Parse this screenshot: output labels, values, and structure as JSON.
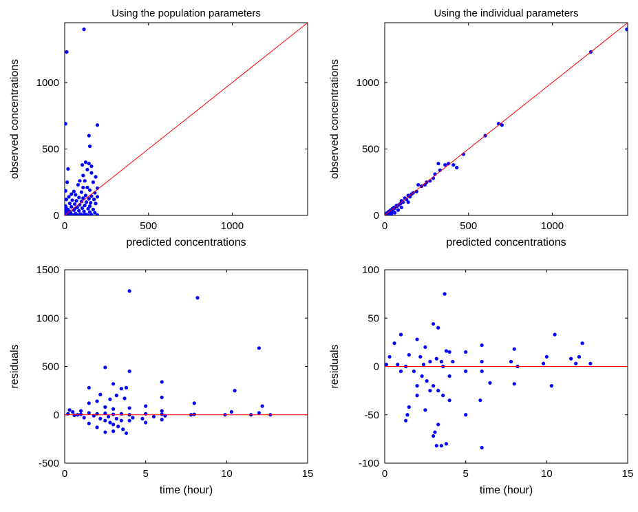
{
  "chart_data": [
    {
      "type": "scatter",
      "title": "Using the population parameters",
      "xlabel": "predicted concentrations",
      "ylabel": "observed concentrations",
      "xlim": [
        0,
        1450
      ],
      "ylim": [
        0,
        1450
      ],
      "xticks": [
        0,
        500,
        1000
      ],
      "yticks": [
        0,
        500,
        1000
      ],
      "point_color": "#0000ff",
      "line_color": "#ff0000",
      "reference_line": {
        "type": "identity",
        "from": [
          0,
          0
        ],
        "to": [
          1450,
          1450
        ]
      },
      "points": [
        [
          12,
          1230
        ],
        [
          115,
          1400
        ],
        [
          5,
          690
        ],
        [
          195,
          680
        ],
        [
          145,
          600
        ],
        [
          150,
          520
        ],
        [
          125,
          400
        ],
        [
          145,
          390
        ],
        [
          105,
          380
        ],
        [
          160,
          370
        ],
        [
          135,
          345
        ],
        [
          20,
          350
        ],
        [
          160,
          320
        ],
        [
          110,
          300
        ],
        [
          185,
          290
        ],
        [
          90,
          260
        ],
        [
          120,
          260
        ],
        [
          170,
          250
        ],
        [
          15,
          250
        ],
        [
          80,
          230
        ],
        [
          110,
          210
        ],
        [
          135,
          210
        ],
        [
          195,
          205
        ],
        [
          150,
          190
        ],
        [
          5,
          185
        ],
        [
          55,
          180
        ],
        [
          100,
          175
        ],
        [
          180,
          170
        ],
        [
          40,
          160
        ],
        [
          65,
          155
        ],
        [
          125,
          150
        ],
        [
          160,
          145
        ],
        [
          195,
          140
        ],
        [
          25,
          140
        ],
        [
          85,
          135
        ],
        [
          110,
          130
        ],
        [
          145,
          125
        ],
        [
          175,
          120
        ],
        [
          10,
          120
        ],
        [
          45,
          115
        ],
        [
          70,
          110
        ],
        [
          100,
          105
        ],
        [
          130,
          100
        ],
        [
          155,
          95
        ],
        [
          185,
          90
        ],
        [
          30,
          90
        ],
        [
          60,
          85
        ],
        [
          90,
          80
        ],
        [
          120,
          75
        ],
        [
          150,
          70
        ],
        [
          5,
          70
        ],
        [
          40,
          65
        ],
        [
          75,
          60
        ],
        [
          105,
          55
        ],
        [
          140,
          50
        ],
        [
          170,
          45
        ],
        [
          20,
          45
        ],
        [
          55,
          40
        ],
        [
          85,
          35
        ],
        [
          115,
          30
        ],
        [
          150,
          25
        ],
        [
          180,
          20
        ],
        [
          10,
          25
        ],
        [
          35,
          20
        ],
        [
          65,
          15
        ],
        [
          95,
          10
        ],
        [
          125,
          8
        ],
        [
          160,
          5
        ],
        [
          195,
          3
        ],
        [
          5,
          10
        ],
        [
          25,
          5
        ],
        [
          50,
          3
        ],
        [
          80,
          2
        ],
        [
          110,
          2
        ],
        [
          140,
          1
        ],
        [
          15,
          2
        ],
        [
          45,
          1
        ],
        [
          75,
          1
        ],
        [
          3,
          40
        ],
        [
          8,
          60
        ],
        [
          2,
          15
        ],
        [
          12,
          8
        ],
        [
          30,
          30
        ],
        [
          60,
          50
        ]
      ]
    },
    {
      "type": "scatter",
      "title": "Using the individual parameters",
      "xlabel": "predicted concentrations",
      "ylabel": "observed concentrations",
      "xlim": [
        0,
        1450
      ],
      "ylim": [
        0,
        1450
      ],
      "xticks": [
        0,
        500,
        1000
      ],
      "yticks": [
        0,
        500,
        1000
      ],
      "point_color": "#0000ff",
      "line_color": "#ff0000",
      "reference_line": {
        "type": "identity",
        "from": [
          0,
          0
        ],
        "to": [
          1450,
          1450
        ]
      },
      "points": [
        [
          1445,
          1400
        ],
        [
          1230,
          1230
        ],
        [
          700,
          680
        ],
        [
          680,
          690
        ],
        [
          600,
          600
        ],
        [
          470,
          460
        ],
        [
          430,
          360
        ],
        [
          410,
          380
        ],
        [
          380,
          390
        ],
        [
          360,
          380
        ],
        [
          320,
          390
        ],
        [
          330,
          340
        ],
        [
          300,
          310
        ],
        [
          290,
          280
        ],
        [
          270,
          260
        ],
        [
          250,
          250
        ],
        [
          240,
          230
        ],
        [
          220,
          220
        ],
        [
          200,
          230
        ],
        [
          190,
          180
        ],
        [
          170,
          170
        ],
        [
          160,
          160
        ],
        [
          150,
          140
        ],
        [
          140,
          150
        ],
        [
          130,
          120
        ],
        [
          120,
          130
        ],
        [
          110,
          100
        ],
        [
          100,
          110
        ],
        [
          95,
          90
        ],
        [
          85,
          80
        ],
        [
          75,
          70
        ],
        [
          70,
          75
        ],
        [
          60,
          55
        ],
        [
          55,
          60
        ],
        [
          50,
          45
        ],
        [
          45,
          50
        ],
        [
          40,
          35
        ],
        [
          35,
          40
        ],
        [
          30,
          25
        ],
        [
          25,
          30
        ],
        [
          20,
          15
        ],
        [
          15,
          20
        ],
        [
          10,
          8
        ],
        [
          8,
          12
        ],
        [
          5,
          4
        ],
        [
          3,
          6
        ],
        [
          2,
          1
        ],
        [
          60,
          20
        ],
        [
          80,
          40
        ],
        [
          100,
          60
        ],
        [
          140,
          100
        ],
        [
          40,
          10
        ],
        [
          25,
          5
        ],
        [
          50,
          30
        ]
      ]
    },
    {
      "type": "scatter",
      "title": "",
      "xlabel": "time (hour)",
      "ylabel": "residuals",
      "xlim": [
        0,
        15
      ],
      "ylim": [
        -500,
        1500
      ],
      "xticks": [
        0,
        5,
        10,
        15
      ],
      "yticks": [
        -500,
        0,
        500,
        1000,
        1500
      ],
      "point_color": "#0000ff",
      "line_color": "#ff0000",
      "reference_line": {
        "type": "horizontal",
        "y": 0
      },
      "points": [
        [
          4.0,
          1280
        ],
        [
          8.2,
          1210
        ],
        [
          12.0,
          690
        ],
        [
          2.5,
          490
        ],
        [
          4.0,
          450
        ],
        [
          6.0,
          340
        ],
        [
          3.0,
          320
        ],
        [
          3.5,
          270
        ],
        [
          3.8,
          280
        ],
        [
          1.5,
          280
        ],
        [
          10.5,
          250
        ],
        [
          2.2,
          210
        ],
        [
          3.2,
          200
        ],
        [
          6.0,
          180
        ],
        [
          3.7,
          170
        ],
        [
          2.8,
          160
        ],
        [
          2.0,
          140
        ],
        [
          1.5,
          120
        ],
        [
          8.0,
          120
        ],
        [
          12.2,
          90
        ],
        [
          5.0,
          90
        ],
        [
          2.5,
          80
        ],
        [
          4.0,
          70
        ],
        [
          3.0,
          60
        ],
        [
          0.3,
          50
        ],
        [
          1.0,
          40
        ],
        [
          6.0,
          40
        ],
        [
          10.3,
          30
        ],
        [
          12.0,
          20
        ],
        [
          0.5,
          30
        ],
        [
          1.5,
          20
        ],
        [
          2.0,
          10
        ],
        [
          2.5,
          15
        ],
        [
          3.0,
          5
        ],
        [
          3.5,
          10
        ],
        [
          4.0,
          0
        ],
        [
          5.0,
          10
        ],
        [
          6.0,
          5
        ],
        [
          7.8,
          0
        ],
        [
          8.0,
          5
        ],
        [
          9.9,
          0
        ],
        [
          11.5,
          0
        ],
        [
          12.7,
          0
        ],
        [
          0.8,
          0
        ],
        [
          1.8,
          -10
        ],
        [
          2.2,
          -40
        ],
        [
          2.5,
          -60
        ],
        [
          2.8,
          -80
        ],
        [
          3.0,
          -100
        ],
        [
          3.3,
          -120
        ],
        [
          3.6,
          -150
        ],
        [
          2.5,
          -180
        ],
        [
          3.0,
          -170
        ],
        [
          2.0,
          -130
        ],
        [
          1.5,
          -90
        ],
        [
          3.8,
          -190
        ],
        [
          4.0,
          -60
        ],
        [
          5.0,
          -80
        ],
        [
          6.0,
          -50
        ],
        [
          1.2,
          -30
        ],
        [
          2.7,
          -20
        ],
        [
          3.2,
          -40
        ],
        [
          3.5,
          -60
        ],
        [
          4.2,
          -30
        ],
        [
          5.5,
          -20
        ],
        [
          0.2,
          10
        ],
        [
          0.6,
          -5
        ],
        [
          1.0,
          5
        ],
        [
          4.8,
          -40
        ],
        [
          6.2,
          -10
        ]
      ]
    },
    {
      "type": "scatter",
      "title": "",
      "xlabel": "time (hour)",
      "ylabel": "residuals",
      "xlim": [
        0,
        15
      ],
      "ylim": [
        -100,
        100
      ],
      "xticks": [
        0,
        5,
        10,
        15
      ],
      "yticks": [
        -100,
        -50,
        0,
        50,
        100
      ],
      "point_color": "#0000ff",
      "line_color": "#ff0000",
      "reference_line": {
        "type": "horizontal",
        "y": 0
      },
      "points": [
        [
          3.7,
          75
        ],
        [
          3.0,
          44
        ],
        [
          10.5,
          33
        ],
        [
          1.0,
          33
        ],
        [
          3.3,
          40
        ],
        [
          0.6,
          24
        ],
        [
          12.2,
          24
        ],
        [
          2.0,
          28
        ],
        [
          2.5,
          20
        ],
        [
          6.0,
          22
        ],
        [
          3.8,
          16
        ],
        [
          4.0,
          15
        ],
        [
          8.0,
          18
        ],
        [
          10.0,
          10
        ],
        [
          11.5,
          8
        ],
        [
          12.0,
          10
        ],
        [
          0.3,
          10
        ],
        [
          1.5,
          12
        ],
        [
          2.2,
          10
        ],
        [
          2.8,
          5
        ],
        [
          3.2,
          8
        ],
        [
          3.5,
          5
        ],
        [
          4.2,
          5
        ],
        [
          5.0,
          15
        ],
        [
          6.0,
          5
        ],
        [
          7.8,
          5
        ],
        [
          8.2,
          0
        ],
        [
          9.8,
          3
        ],
        [
          11.8,
          3
        ],
        [
          12.7,
          3
        ],
        [
          0.1,
          2
        ],
        [
          0.8,
          2
        ],
        [
          1.3,
          0
        ],
        [
          1.8,
          -5
        ],
        [
          2.3,
          -10
        ],
        [
          2.6,
          -15
        ],
        [
          3.0,
          -20
        ],
        [
          3.3,
          -25
        ],
        [
          3.6,
          -30
        ],
        [
          4.0,
          -35
        ],
        [
          1.5,
          -42
        ],
        [
          1.4,
          -50
        ],
        [
          1.3,
          -56
        ],
        [
          2.0,
          -30
        ],
        [
          2.5,
          -45
        ],
        [
          3.0,
          -72
        ],
        [
          3.3,
          -60
        ],
        [
          3.5,
          -82
        ],
        [
          3.2,
          -82
        ],
        [
          3.8,
          -80
        ],
        [
          3.1,
          -68
        ],
        [
          5.0,
          -50
        ],
        [
          6.0,
          -84
        ],
        [
          5.9,
          -35
        ],
        [
          8.0,
          -18
        ],
        [
          10.3,
          -20
        ],
        [
          6.5,
          -17
        ],
        [
          4.0,
          -10
        ],
        [
          2.8,
          -25
        ],
        [
          2.0,
          -20
        ],
        [
          1.0,
          -5
        ],
        [
          5.0,
          -5
        ],
        [
          6.0,
          -5
        ],
        [
          3.6,
          0
        ],
        [
          2.4,
          2
        ]
      ]
    }
  ]
}
